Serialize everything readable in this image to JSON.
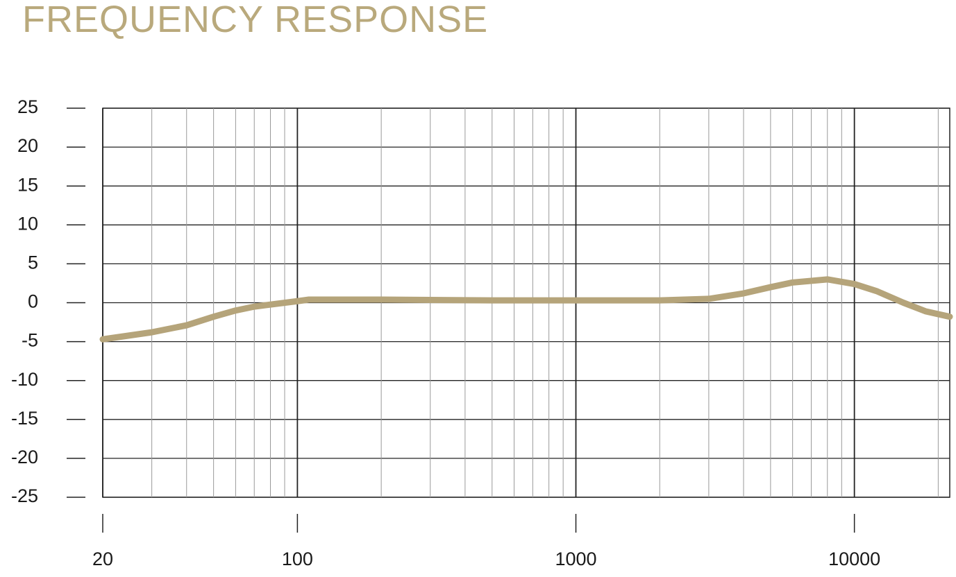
{
  "chart_data": {
    "type": "line",
    "title": "FREQUENCY RESPONSE",
    "xscale": "log",
    "x": [
      20,
      30,
      40,
      50,
      60,
      70,
      100,
      110,
      200,
      500,
      1000,
      2000,
      3000,
      4000,
      5000,
      6000,
      8000,
      10000,
      12000,
      15000,
      18000,
      22000
    ],
    "series": [
      {
        "color": "#b5a47a",
        "values": [
          -4.7,
          -3.8,
          -2.9,
          -1.8,
          -1.0,
          -0.5,
          0.2,
          0.4,
          0.4,
          0.3,
          0.3,
          0.3,
          0.5,
          1.2,
          2.0,
          2.6,
          3.0,
          2.4,
          1.5,
          0,
          -1.1,
          -1.8
        ]
      }
    ],
    "xlim": [
      20,
      22000
    ],
    "ylim": [
      -25,
      25
    ],
    "xticks": [
      20,
      100,
      1000,
      10000
    ],
    "xminorticks": [
      30,
      40,
      50,
      60,
      70,
      80,
      90,
      200,
      300,
      400,
      500,
      600,
      700,
      800,
      900,
      2000,
      3000,
      4000,
      5000,
      6000,
      7000,
      8000,
      9000,
      20000
    ],
    "yticks": [
      -25,
      -20,
      -15,
      -10,
      -5,
      0,
      5,
      10,
      15,
      20,
      25
    ],
    "grid": true
  }
}
